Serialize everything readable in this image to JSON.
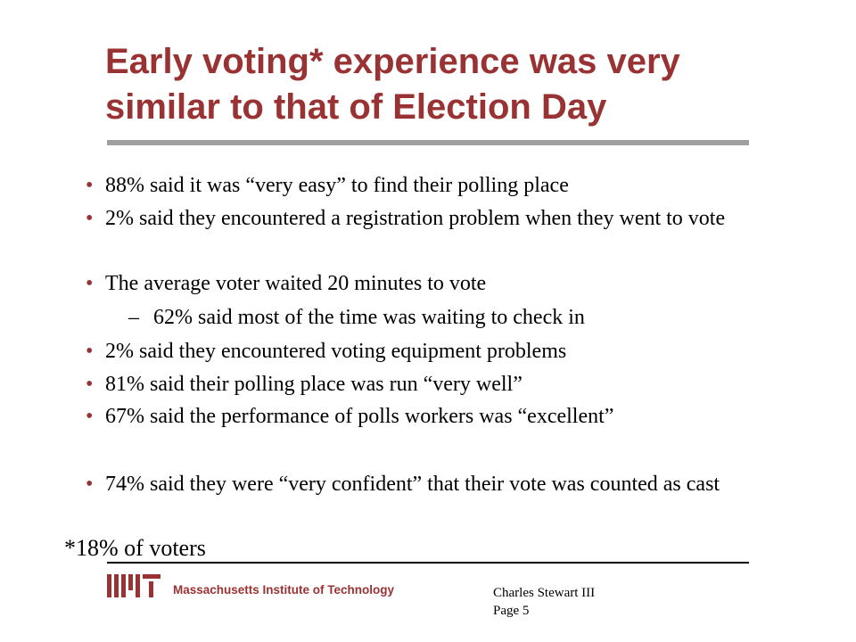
{
  "slide": {
    "title": "Early voting* experience was very similar to that of Election Day",
    "bullet_marker": "•",
    "sub_marker": "–",
    "bullets": [
      "88% said it was “very easy” to find their polling place",
      "2% said they encountered a registration problem when they went to vote",
      "The average voter waited 20 minutes to vote",
      "2% said they encountered voting equipment problems",
      "81% said their polling place was run “very well”",
      "67% said the performance of polls workers was “excellent”",
      "74% said they were “very confident” that their vote was counted as cast"
    ],
    "sub_bullet": "62% said most of the time was waiting to check in",
    "footnote": "*18% of voters"
  },
  "footer": {
    "institute": "Massachusetts Institute of Technology",
    "author": "Charles Stewart III",
    "page": "Page 5"
  },
  "colors": {
    "title": "#993333",
    "rule": "#a0a0a0",
    "logo": "#993333"
  },
  "icons": {
    "logo": "mit-logo-icon"
  }
}
